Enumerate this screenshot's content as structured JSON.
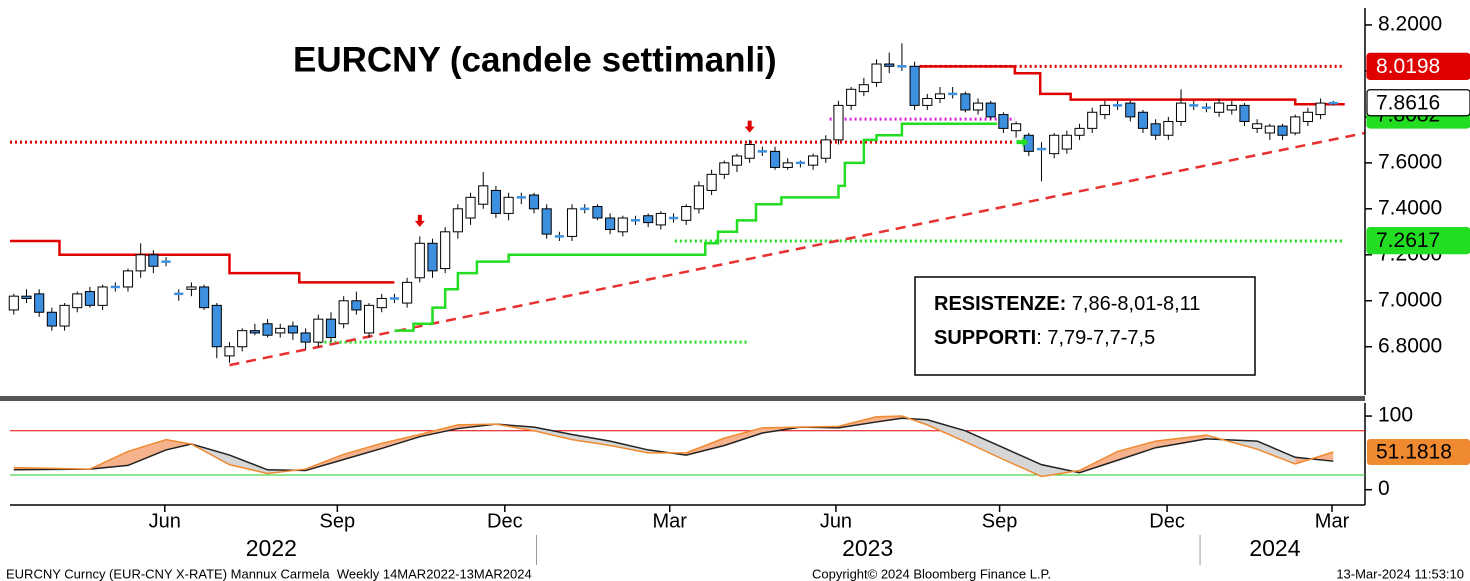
{
  "chart_data": {
    "type": "candlestick",
    "title": "EURCNY (candele settimanli)",
    "open": [
      6.96,
      7.02,
      7.03,
      6.95,
      6.89,
      6.97,
      7.04,
      6.98,
      7.06,
      7.06,
      7.13,
      7.2,
      7.17,
      7.03,
      7.05,
      7.06,
      6.98,
      6.76,
      6.8,
      6.87,
      6.9,
      6.86,
      6.89,
      6.86,
      6.82,
      6.92,
      6.9,
      7.0,
      6.86,
      6.97,
      7.01,
      6.99,
      7.1,
      7.25,
      7.14,
      7.3,
      7.36,
      7.42,
      7.48,
      7.38,
      7.45,
      7.46,
      7.4,
      7.28,
      7.28,
      7.4,
      7.41,
      7.36,
      7.3,
      7.35,
      7.37,
      7.33,
      7.36,
      7.35,
      7.4,
      7.48,
      7.55,
      7.59,
      7.62,
      7.65,
      7.65,
      7.58,
      7.6,
      7.59,
      7.62,
      7.7,
      7.85,
      7.91,
      7.95,
      8.03,
      8.02,
      8.02,
      7.85,
      7.88,
      7.9,
      7.9,
      7.83,
      7.86,
      7.81,
      7.74,
      7.72,
      7.66,
      7.64,
      7.66,
      7.72,
      7.75,
      7.81,
      7.85,
      7.86,
      7.82,
      7.77,
      7.72,
      7.78,
      7.85,
      7.84,
      7.82,
      7.83,
      7.85,
      7.75,
      7.73,
      7.76,
      7.73,
      7.78,
      7.81,
      7.86
    ],
    "high": [
      7.03,
      7.05,
      7.05,
      6.97,
      6.99,
      7.04,
      7.06,
      7.07,
      7.08,
      7.14,
      7.25,
      7.22,
      7.19,
      7.05,
      7.08,
      7.07,
      6.99,
      6.82,
      6.88,
      6.9,
      6.92,
      6.9,
      6.91,
      6.88,
      6.94,
      6.95,
      7.02,
      7.04,
      6.99,
      7.03,
      7.03,
      7.1,
      7.28,
      7.27,
      7.32,
      7.42,
      7.47,
      7.56,
      7.5,
      7.47,
      7.47,
      7.47,
      7.42,
      7.3,
      7.42,
      7.42,
      7.42,
      7.38,
      7.37,
      7.37,
      7.38,
      7.39,
      7.38,
      7.42,
      7.52,
      7.57,
      7.61,
      7.64,
      7.7,
      7.67,
      7.67,
      7.62,
      7.61,
      7.64,
      7.72,
      7.87,
      7.93,
      7.97,
      8.05,
      8.08,
      8.12,
      8.04,
      7.9,
      7.93,
      7.93,
      7.91,
      7.88,
      7.87,
      7.82,
      7.78,
      7.73,
      7.69,
      7.73,
      7.74,
      7.77,
      7.84,
      7.87,
      7.87,
      7.87,
      7.83,
      7.79,
      7.8,
      7.92,
      7.87,
      7.86,
      7.88,
      7.87,
      7.86,
      7.79,
      7.77,
      7.77,
      7.81,
      7.84,
      7.88,
      7.87
    ],
    "low": [
      6.94,
      6.99,
      6.93,
      6.87,
      6.87,
      6.95,
      6.97,
      6.96,
      7.04,
      7.04,
      7.1,
      7.12,
      7.15,
      7.0,
      7.02,
      6.96,
      6.75,
      6.73,
      6.78,
      6.85,
      6.84,
      6.84,
      6.83,
      6.79,
      6.8,
      6.82,
      6.88,
      6.94,
      6.84,
      6.95,
      6.99,
      6.97,
      7.08,
      7.1,
      7.12,
      7.27,
      7.33,
      7.4,
      7.36,
      7.35,
      7.42,
      7.38,
      7.27,
      7.26,
      7.26,
      7.38,
      7.35,
      7.29,
      7.28,
      7.33,
      7.32,
      7.31,
      7.34,
      7.33,
      7.38,
      7.46,
      7.53,
      7.56,
      7.6,
      7.63,
      7.57,
      7.57,
      7.58,
      7.57,
      7.6,
      7.68,
      7.83,
      7.89,
      7.93,
      7.99,
      8.0,
      7.83,
      7.83,
      7.86,
      7.88,
      7.82,
      7.81,
      7.79,
      7.73,
      7.71,
      7.63,
      7.52,
      7.62,
      7.64,
      7.7,
      7.73,
      7.79,
      7.83,
      7.78,
      7.73,
      7.7,
      7.7,
      7.76,
      7.83,
      7.82,
      7.8,
      7.81,
      7.76,
      7.73,
      7.7,
      7.7,
      7.72,
      7.76,
      7.79,
      7.85
    ],
    "close": [
      7.02,
      7.01,
      6.95,
      6.89,
      6.98,
      7.03,
      6.98,
      7.06,
      7.06,
      7.13,
      7.2,
      7.15,
      7.17,
      7.03,
      7.06,
      6.97,
      6.8,
      6.8,
      6.87,
      6.86,
      6.85,
      6.88,
      6.86,
      6.82,
      6.92,
      6.84,
      7.0,
      6.96,
      6.98,
      7.01,
      7.01,
      7.08,
      7.25,
      7.13,
      7.3,
      7.4,
      7.45,
      7.5,
      7.38,
      7.45,
      7.45,
      7.4,
      7.29,
      7.28,
      7.4,
      7.4,
      7.36,
      7.31,
      7.36,
      7.35,
      7.34,
      7.38,
      7.36,
      7.41,
      7.5,
      7.55,
      7.6,
      7.63,
      7.68,
      7.65,
      7.58,
      7.6,
      7.6,
      7.63,
      7.7,
      7.85,
      7.92,
      7.94,
      8.03,
      8.02,
      8.02,
      7.85,
      7.88,
      7.9,
      7.9,
      7.83,
      7.86,
      7.8,
      7.75,
      7.77,
      7.65,
      7.66,
      7.72,
      7.72,
      7.75,
      7.82,
      7.85,
      7.85,
      7.8,
      7.75,
      7.72,
      7.78,
      7.86,
      7.85,
      7.84,
      7.86,
      7.85,
      7.78,
      7.77,
      7.76,
      7.72,
      7.8,
      7.82,
      7.86,
      7.86
    ],
    "up_color": "#ffffff",
    "down_color": "#3d8fe0",
    "xlim": [
      -0.3,
      106.5
    ],
    "ylim": [
      6.59,
      8.265
    ],
    "yticks": [
      {
        "value": 6.8,
        "label": "6.8000"
      },
      {
        "value": 7.0,
        "label": "7.0000"
      },
      {
        "value": 7.2,
        "label": "7.2000"
      },
      {
        "value": 7.4,
        "label": "7.4000"
      },
      {
        "value": 7.6,
        "label": "7.6000"
      },
      {
        "value": 7.8,
        "label": "7.8000"
      },
      {
        "value": 8.0,
        "label": "8.0000"
      },
      {
        "value": 8.2,
        "label": "8.2000"
      }
    ],
    "xticks": [
      {
        "value": 11.9,
        "label": "Jun"
      },
      {
        "value": 25.5,
        "label": "Sep"
      },
      {
        "value": 38.7,
        "label": "Dec"
      },
      {
        "value": 51.7,
        "label": "Mar"
      },
      {
        "value": 64.8,
        "label": "Jun"
      },
      {
        "value": 77.7,
        "label": "Sep"
      },
      {
        "value": 90.9,
        "label": "Dec"
      },
      {
        "value": 103.9,
        "label": "Mar"
      }
    ],
    "years": [
      {
        "value": 20.3,
        "label": "2022"
      },
      {
        "value": 67.3,
        "label": "2023"
      },
      {
        "value": 99.4,
        "label": "2024"
      }
    ],
    "year_breaks": [
      41.2,
      93.5
    ],
    "resistance": {
      "color": "#e00000",
      "x": [
        -0.3,
        3.6,
        17,
        22.5,
        30,
        50,
        71.4,
        78.9,
        80.9,
        83.3,
        101,
        104.9
      ],
      "values": [
        7.26,
        7.2,
        7.12,
        7.08,
        7.08,
        null,
        8.02,
        7.99,
        7.9,
        7.875,
        7.855,
        7.855
      ]
    },
    "support": {
      "color": "#22dd22",
      "x": [
        30,
        31.5,
        33,
        34,
        35,
        36.5,
        39,
        54,
        54.5,
        55.5,
        57,
        58.5,
        60.5,
        64.5,
        65,
        65.5,
        67,
        68,
        70,
        77.5
      ],
      "values": [
        6.87,
        6.9,
        6.97,
        7.05,
        7.12,
        7.17,
        7.2,
        7.2,
        7.25,
        7.3,
        7.35,
        7.42,
        7.45,
        7.45,
        7.5,
        7.6,
        7.7,
        7.72,
        7.77,
        7.77
      ]
    },
    "levels": [
      {
        "value": 7.69,
        "xlim": [
          -0.3,
          78.9
        ],
        "color": "#e00000"
      },
      {
        "value": 8.02,
        "xlim": [
          71.4,
          104.9
        ],
        "color": "#e00000"
      },
      {
        "value": 7.79,
        "xlim": [
          64.3,
          78.9
        ],
        "color": "#e020e0"
      },
      {
        "value": 6.82,
        "xlim": [
          24.1,
          58
        ],
        "color": "#22dd22"
      },
      {
        "value": 7.26,
        "xlim": [
          52.1,
          104.9
        ],
        "color": "#22dd22"
      }
    ],
    "trend": {
      "color": "#e83030",
      "x": [
        17,
        106.5
      ],
      "values": [
        6.72,
        7.73
      ]
    },
    "signals": [
      {
        "x": 32,
        "value": 7.33,
        "color": "#e00000",
        "dir": "down"
      },
      {
        "x": 58,
        "value": 7.74,
        "color": "#e00000",
        "dir": "down"
      },
      {
        "x": 79.5,
        "value": 7.69,
        "color": "#22dd22",
        "dir": "right"
      }
    ],
    "price_tags": [
      {
        "value": 8.0198,
        "color": "#e00000",
        "text_color": "#ffffff"
      },
      {
        "value": 7.8082,
        "color": "#22dd22",
        "text_color": "#000000"
      },
      {
        "value": 7.8616,
        "color": "#ffffff",
        "text_color": "#000000"
      },
      {
        "value": 7.2617,
        "color": "#22dd22",
        "text_color": "#000000"
      }
    ],
    "annotation": {
      "lines": [
        {
          "bold": "RESISTENZE:",
          "text": " 7,86-8,01-8,11"
        },
        {
          "bold": "SUPPORTI",
          "text": ": 7,79-7,7-7,5"
        }
      ]
    },
    "oscillator": {
      "ylim": [
        -14,
        115
      ],
      "yticks": [
        0,
        100
      ],
      "levels": [
        {
          "value": 80,
          "color": "#e00000"
        },
        {
          "value": 20,
          "color": "#22cc22"
        }
      ],
      "x": [
        0,
        6,
        9,
        12,
        14,
        17,
        20,
        23,
        26,
        29,
        32,
        35,
        38,
        41,
        44,
        47,
        50,
        53,
        56,
        59,
        62,
        65,
        68,
        70,
        72,
        75,
        78,
        81,
        84,
        87,
        90,
        94,
        98,
        101,
        104
      ],
      "series": [
        {
          "color": "#222222",
          "values": [
            27,
            28,
            33,
            54,
            62,
            47,
            27,
            26,
            41,
            56,
            72,
            83,
            89,
            85,
            75,
            66,
            54,
            47,
            60,
            77,
            85,
            84,
            92,
            97,
            95,
            80,
            57,
            34,
            23,
            40,
            57,
            69,
            66,
            44,
            38.7
          ]
        },
        {
          "color": "#f08a30",
          "values": [
            30,
            28,
            52,
            68,
            62,
            34,
            22,
            28,
            48,
            63,
            75,
            88,
            89,
            80,
            68,
            60,
            50,
            50,
            70,
            84,
            85,
            86,
            99,
            100,
            88,
            65,
            41,
            18,
            26,
            52,
            66,
            74,
            55,
            35,
            51.1818
          ]
        }
      ],
      "fill_colors": [
        "#d6d6d6",
        "#f6b28c"
      ],
      "tag": {
        "value": 51.1818,
        "color": "#f08a30"
      }
    },
    "footer": {
      "left": "EURCNY Curncy (EUR-CNY X-RATE) Mannux Carmela  Weekly 14MAR2022-13MAR2024",
      "center": "Copyright© 2024 Bloomberg Finance L.P.",
      "right": "13-Mar-2024 11:53:10"
    }
  }
}
